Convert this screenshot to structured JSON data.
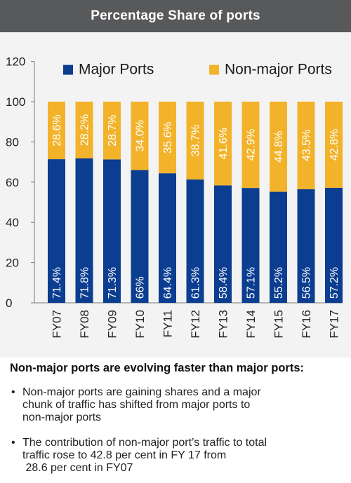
{
  "header": {
    "title": "Percentage Share of ports"
  },
  "chart_data": {
    "type": "bar",
    "stacked": true,
    "categories": [
      "FY07",
      "FY08",
      "FY09",
      "FY10",
      "FY11",
      "FY12",
      "FY13",
      "FY14",
      "FY15",
      "FY16",
      "FY17"
    ],
    "series": [
      {
        "name": "Major Ports",
        "color": "#0b3d91",
        "values": [
          71.4,
          71.8,
          71.3,
          66,
          64.4,
          61.3,
          58.4,
          57.1,
          55.2,
          56.5,
          57.2
        ],
        "labels": [
          "71.4%",
          "71.8%",
          "71.3%",
          "66%",
          "64.4%",
          "61.3%",
          "58.4%",
          "57.1%",
          "55.2%",
          "56.5%",
          "57.2%"
        ]
      },
      {
        "name": "Non-major Ports",
        "color": "#f2b32b",
        "values": [
          28.6,
          28.2,
          28.7,
          34.0,
          35.6,
          38.7,
          41.6,
          42.9,
          44.8,
          43.5,
          42.8
        ],
        "labels": [
          "28.6%",
          "28.2%",
          "28.7%",
          "34.0%",
          "35.6%",
          "38.7%",
          "41.6%",
          "42.9%",
          "44.8%",
          "43.5%",
          "42.8%"
        ]
      }
    ],
    "ylim": [
      0,
      120
    ],
    "yticks": [
      0,
      20,
      40,
      60,
      80,
      100,
      120
    ],
    "ytick_labels": [
      "0",
      "20",
      "40",
      "60",
      "80",
      "100",
      "120"
    ],
    "grid": false,
    "legend": "top"
  },
  "notes": {
    "title": "Non-major ports are evolving faster than major ports:",
    "bullet_glyph": "•",
    "bullet1_lines": [
      "Non-major ports are gaining shares and a major",
      "chunk of traffic has shifted from major ports to",
      "non-major ports"
    ],
    "bullet2_lines": [
      "The contribution of non-major port’s traffic to total",
      "traffic rose to 42.8 per cent in FY 17 from",
      " 28.6 per cent in FY07"
    ]
  }
}
